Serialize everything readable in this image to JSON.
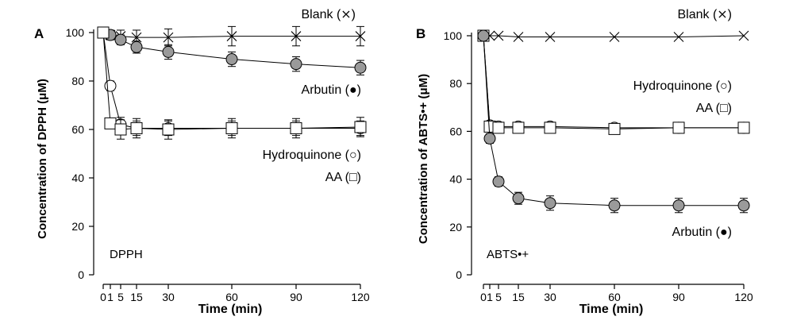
{
  "chart_data": [
    {
      "type": "scatter",
      "panel_label": "A",
      "inset_label": "DPPH",
      "xlabel": "Time (min)",
      "ylabel": "Concentration of DPPH (μM)",
      "xlim": [
        0,
        120
      ],
      "ylim": [
        0,
        100
      ],
      "xticks": [
        0,
        1,
        5,
        15,
        30,
        60,
        90,
        120
      ],
      "yticks": [
        0,
        20,
        40,
        60,
        80,
        100
      ],
      "series": [
        {
          "name": "Blank",
          "legend_symbol": "(⨯)",
          "marker": "x",
          "fill": "none",
          "x": [
            0,
            1,
            5,
            15,
            30,
            60,
            90,
            120
          ],
          "y": [
            100,
            99,
            98.5,
            98,
            98,
            98.5,
            98.5,
            98.5
          ],
          "err": [
            1.5,
            2,
            2.5,
            3,
            3.5,
            4,
            4,
            4
          ]
        },
        {
          "name": "Arbutin",
          "legend_symbol": "(●)",
          "marker": "circle",
          "fill": "#9a9a9a",
          "x": [
            0,
            1,
            5,
            15,
            30,
            60,
            90,
            120
          ],
          "y": [
            100,
            99,
            97,
            94,
            92,
            89,
            87,
            85.5
          ],
          "err": [
            1,
            1.5,
            2,
            2.5,
            3,
            3,
            3,
            3
          ]
        },
        {
          "name": "Hydroquinone",
          "legend_symbol": "(○)",
          "marker": "circle",
          "fill": "#ffffff",
          "x": [
            0,
            1,
            5,
            15,
            30,
            60,
            90,
            120
          ],
          "y": [
            100,
            78,
            62,
            60.5,
            60.5,
            60.5,
            60.5,
            60.5
          ],
          "err": [
            1,
            2,
            3,
            3,
            3,
            3,
            3,
            3
          ]
        },
        {
          "name": "AA",
          "legend_symbol": "(□)",
          "marker": "square",
          "fill": "#ffffff",
          "x": [
            0,
            1,
            5,
            15,
            30,
            60,
            90,
            120
          ],
          "y": [
            100,
            62.5,
            60,
            60.5,
            60,
            60.5,
            60.5,
            61
          ],
          "err": [
            1,
            2,
            4,
            4,
            4,
            4,
            4,
            4
          ]
        }
      ]
    },
    {
      "type": "scatter",
      "panel_label": "B",
      "inset_label": "ABTS•+",
      "xlabel": "Time (min)",
      "ylabel": "Concentration of ABTS•+ (μM)",
      "xlim": [
        0,
        120
      ],
      "ylim": [
        0,
        100
      ],
      "xticks": [
        0,
        1,
        5,
        15,
        30,
        60,
        90,
        120
      ],
      "yticks": [
        0,
        20,
        40,
        60,
        80,
        100
      ],
      "series": [
        {
          "name": "Blank",
          "legend_symbol": "(⨯)",
          "marker": "x",
          "fill": "none",
          "x": [
            0,
            1,
            5,
            15,
            30,
            60,
            90,
            120
          ],
          "y": [
            100,
            100,
            100,
            99.5,
            99.5,
            99.5,
            99.5,
            100
          ],
          "err": [
            0,
            0,
            0,
            0,
            0,
            0,
            0,
            0
          ]
        },
        {
          "name": "Hydroquinone",
          "legend_symbol": "(○)",
          "marker": "circle",
          "fill": "#ffffff",
          "x": [
            0,
            1,
            5,
            15,
            30,
            60,
            90,
            120
          ],
          "y": [
            100,
            62.5,
            62,
            62,
            62,
            61.5,
            61.5,
            61.5
          ],
          "err": [
            0,
            1.5,
            1.5,
            1.5,
            1.5,
            1.5,
            1.5,
            1.5
          ]
        },
        {
          "name": "AA",
          "legend_symbol": "(□)",
          "marker": "square",
          "fill": "#ffffff",
          "x": [
            0,
            1,
            5,
            15,
            30,
            60,
            90,
            120
          ],
          "y": [
            100,
            62,
            61.5,
            61.5,
            61.5,
            61,
            61.5,
            61.5
          ],
          "err": [
            0,
            1.5,
            1.5,
            1.5,
            1.5,
            1.5,
            1.5,
            1.5
          ]
        },
        {
          "name": "Arbutin",
          "legend_symbol": "(●)",
          "marker": "circle",
          "fill": "#9a9a9a",
          "x": [
            0,
            1,
            5,
            15,
            30,
            60,
            90,
            120
          ],
          "y": [
            100,
            57,
            39,
            32,
            30,
            29,
            29,
            29
          ],
          "err": [
            0,
            2,
            2,
            2.5,
            3,
            3,
            3,
            3
          ]
        }
      ]
    }
  ]
}
